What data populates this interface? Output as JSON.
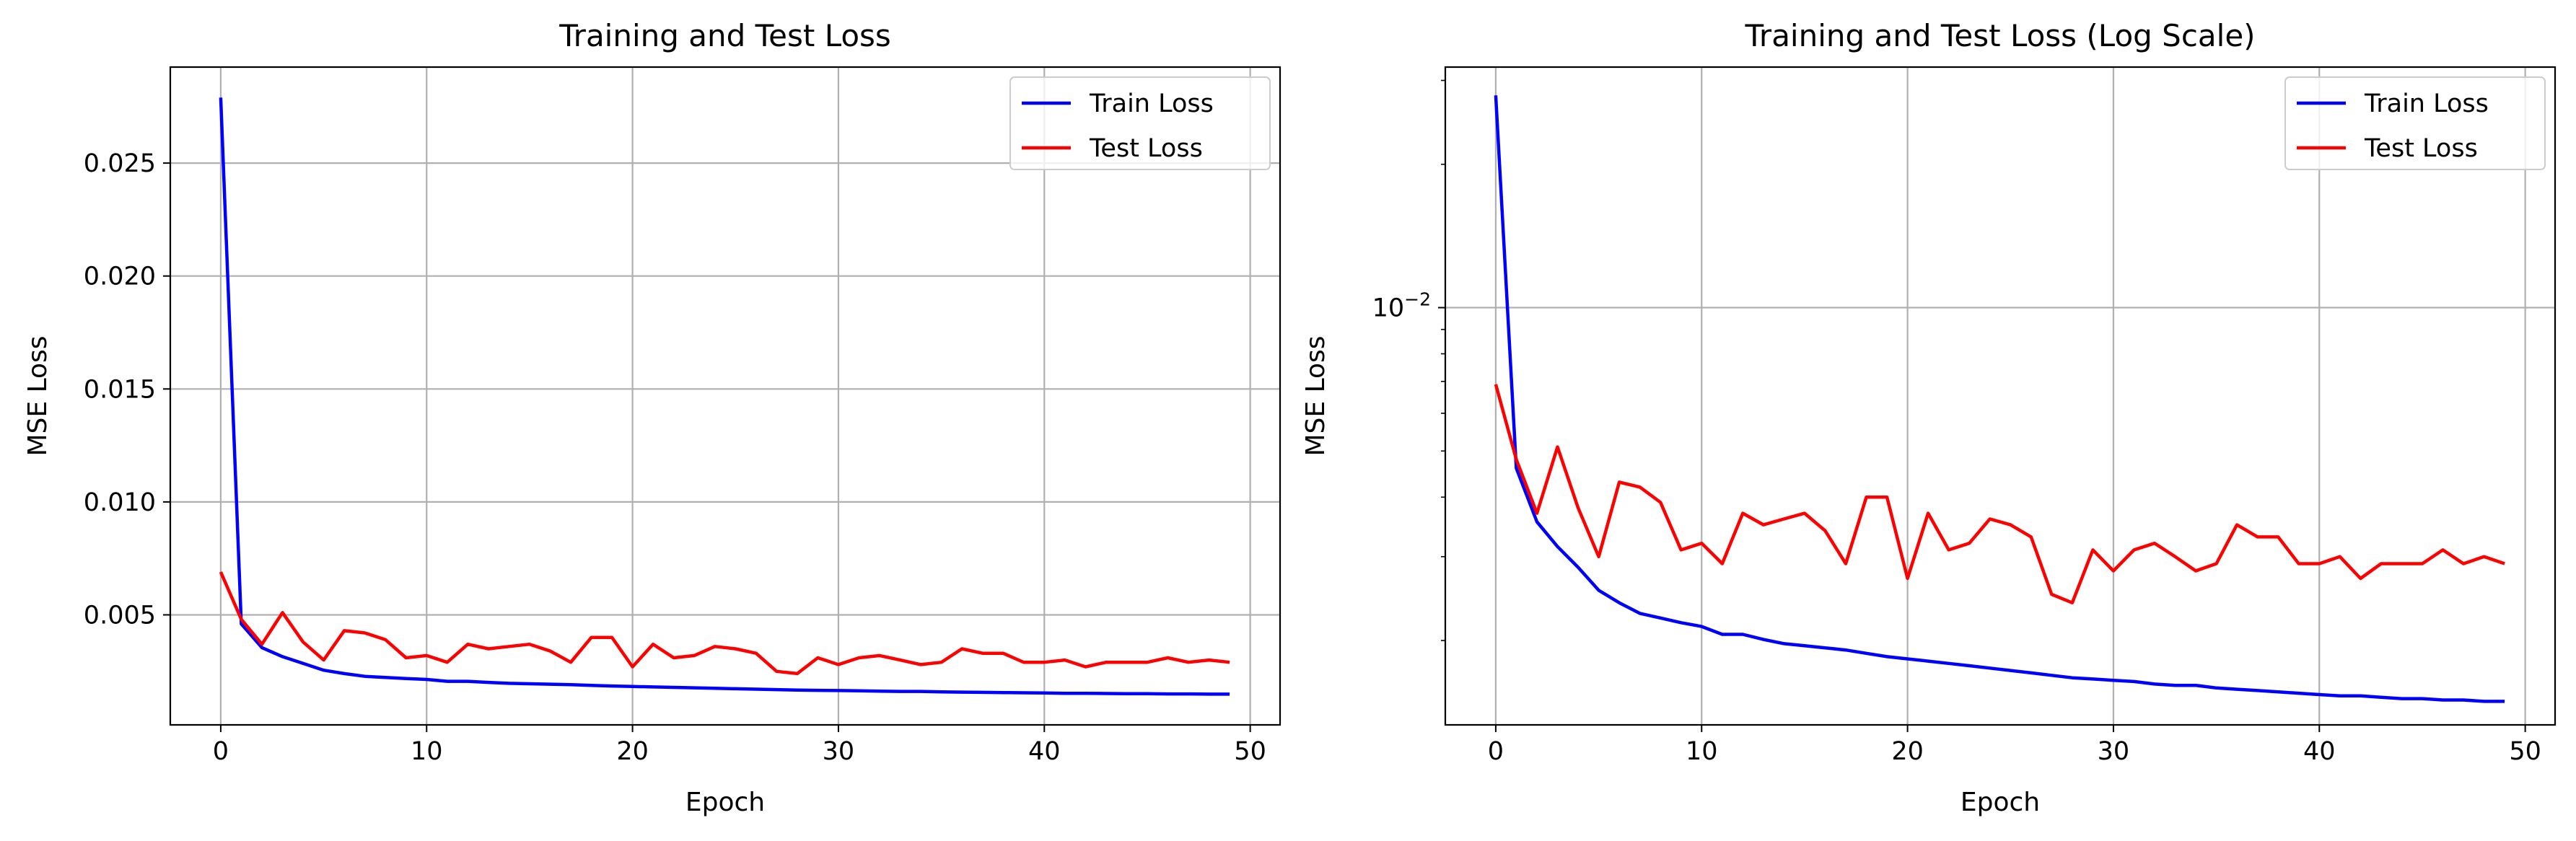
{
  "chart_data": [
    {
      "type": "line",
      "title": "Training and Test Loss",
      "xlabel": "Epoch",
      "ylabel": "MSE Loss",
      "xlim": [
        -2.45,
        51.45
      ],
      "ylim": [
        0.00013,
        0.02925
      ],
      "yscale": "linear",
      "xticks": [
        0,
        10,
        20,
        30,
        40,
        50
      ],
      "xtick_labels": [
        "0",
        "10",
        "20",
        "30",
        "40",
        "50"
      ],
      "yticks": [
        0.005,
        0.01,
        0.015,
        0.02,
        0.025
      ],
      "ytick_labels": [
        "0.005",
        "0.010",
        "0.015",
        "0.020",
        "0.025"
      ],
      "grid": true,
      "legend": "top-right",
      "legend_entries": [
        "Train Loss",
        "Test Loss"
      ],
      "x": [
        0,
        1,
        2,
        3,
        4,
        5,
        6,
        7,
        8,
        9,
        10,
        11,
        12,
        13,
        14,
        15,
        16,
        17,
        18,
        19,
        20,
        21,
        22,
        23,
        24,
        25,
        26,
        27,
        28,
        29,
        30,
        31,
        32,
        33,
        34,
        35,
        36,
        37,
        38,
        39,
        40,
        41,
        42,
        43,
        44,
        45,
        46,
        47,
        48,
        49
      ],
      "series": [
        {
          "name": "Train Loss",
          "color": "#0000ff",
          "values": [
            0.0279,
            0.0046,
            0.00355,
            0.00315,
            0.00285,
            0.00255,
            0.0024,
            0.00228,
            0.00223,
            0.00218,
            0.00214,
            0.00206,
            0.00206,
            0.00201,
            0.00197,
            0.00195,
            0.00193,
            0.00191,
            0.00188,
            0.00185,
            0.00183,
            0.00181,
            0.00179,
            0.00177,
            0.00175,
            0.00173,
            0.00171,
            0.00169,
            0.00167,
            0.00166,
            0.00165,
            0.00164,
            0.00162,
            0.00161,
            0.00161,
            0.00159,
            0.00158,
            0.00157,
            0.00156,
            0.00155,
            0.00154,
            0.00153,
            0.00153,
            0.00152,
            0.00151,
            0.00151,
            0.0015,
            0.0015,
            0.00149,
            0.00149
          ]
        },
        {
          "name": "Test Loss",
          "color": "#ff0000",
          "values": [
            0.0069,
            0.0048,
            0.0037,
            0.0051,
            0.0038,
            0.003,
            0.0043,
            0.0042,
            0.0039,
            0.0031,
            0.0032,
            0.0029,
            0.0037,
            0.0035,
            0.0036,
            0.0037,
            0.0034,
            0.0029,
            0.004,
            0.004,
            0.0027,
            0.0037,
            0.0031,
            0.0032,
            0.0036,
            0.0035,
            0.0033,
            0.0025,
            0.0024,
            0.0031,
            0.0028,
            0.0031,
            0.0032,
            0.003,
            0.0028,
            0.0029,
            0.0035,
            0.0033,
            0.0033,
            0.0029,
            0.0029,
            0.003,
            0.0027,
            0.0029,
            0.0029,
            0.0029,
            0.0031,
            0.0029,
            0.003,
            0.0029
          ]
        }
      ]
    },
    {
      "type": "line",
      "title": "Training and Test Loss (Log Scale)",
      "xlabel": "Epoch",
      "ylabel": "MSE Loss",
      "xlim": [
        -2.45,
        51.45
      ],
      "ylim": [
        0.00133,
        0.032
      ],
      "yscale": "log",
      "xticks": [
        0,
        10,
        20,
        30,
        40,
        50
      ],
      "xtick_labels": [
        "0",
        "10",
        "20",
        "30",
        "40",
        "50"
      ],
      "ytick_major": [
        {
          "value": 0.01,
          "base": "10",
          "exp": "−2"
        }
      ],
      "yticks_minor": [
        0.002,
        0.003,
        0.004,
        0.005,
        0.006,
        0.007,
        0.008,
        0.009,
        0.02,
        0.03
      ],
      "grid": true,
      "legend": "top-right",
      "legend_entries": [
        "Train Loss",
        "Test Loss"
      ],
      "series_ref": 0
    }
  ]
}
